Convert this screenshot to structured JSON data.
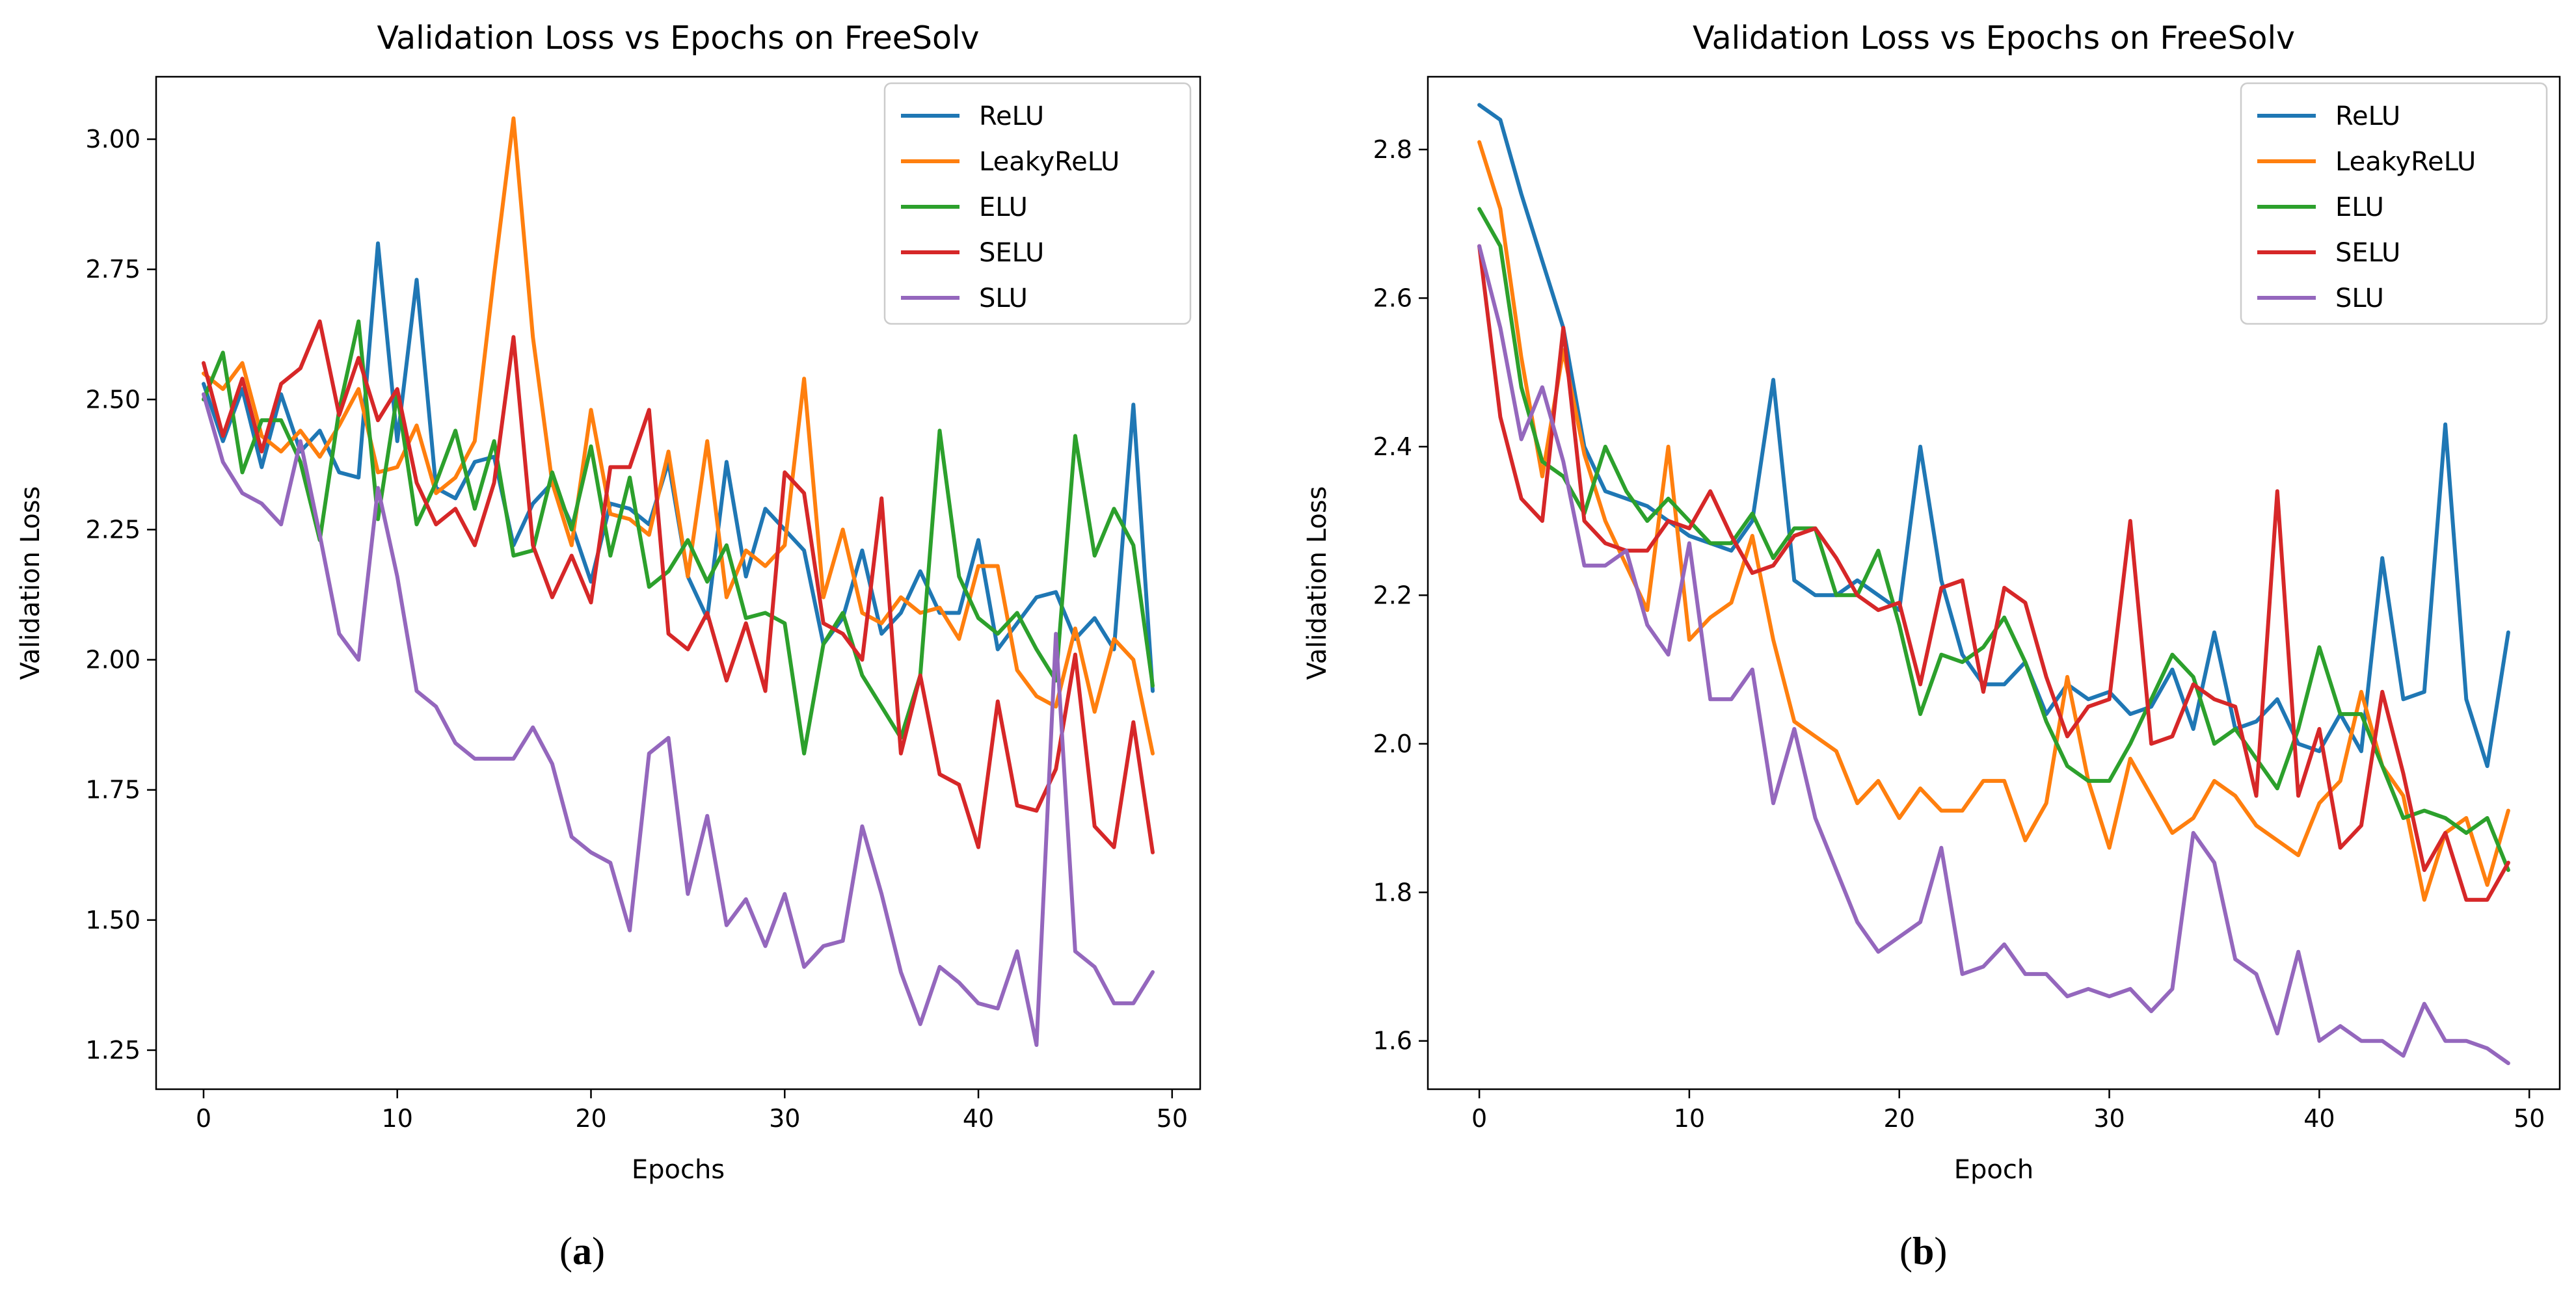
{
  "chart_data": [
    {
      "id": "a",
      "type": "line",
      "title": "Validation Loss vs Epochs on FreeSolv",
      "xlabel": "Epochs",
      "ylabel": "Validation Loss",
      "xlim": [
        -2.45,
        51.45
      ],
      "ylim": [
        1.175,
        3.12
      ],
      "xticks": [
        0,
        10,
        20,
        30,
        40,
        50
      ],
      "yticks": [
        1.25,
        1.5,
        1.75,
        2.0,
        2.25,
        2.5,
        2.75,
        3.0
      ],
      "ytick_labels": [
        "1.25",
        "1.50",
        "1.75",
        "2.00",
        "2.25",
        "2.50",
        "2.75",
        "3.00"
      ],
      "xtick_labels": [
        "0",
        "10",
        "20",
        "30",
        "40",
        "50"
      ],
      "legend_position": "top-right",
      "caption_prefix": "(",
      "caption_letter": "a",
      "caption_suffix": ")",
      "series": [
        {
          "name": "ReLU",
          "color": "#1f77b4",
          "values": [
            2.53,
            2.42,
            2.52,
            2.37,
            2.51,
            2.4,
            2.44,
            2.36,
            2.35,
            2.8,
            2.42,
            2.73,
            2.33,
            2.31,
            2.38,
            2.39,
            2.22,
            2.3,
            2.34,
            2.26,
            2.15,
            2.3,
            2.29,
            2.26,
            2.38,
            2.16,
            2.08,
            2.38,
            2.16,
            2.29,
            2.25,
            2.21,
            2.03,
            2.08,
            2.21,
            2.05,
            2.09,
            2.17,
            2.09,
            2.09,
            2.23,
            2.02,
            2.07,
            2.12,
            2.13,
            2.04,
            2.08,
            2.02,
            2.49,
            1.94
          ]
        },
        {
          "name": "LeakyReLU",
          "color": "#ff7f0e",
          "values": [
            2.55,
            2.52,
            2.57,
            2.43,
            2.4,
            2.44,
            2.39,
            2.45,
            2.52,
            2.36,
            2.37,
            2.45,
            2.32,
            2.35,
            2.42,
            2.74,
            3.04,
            2.62,
            2.34,
            2.22,
            2.48,
            2.28,
            2.27,
            2.24,
            2.4,
            2.16,
            2.42,
            2.12,
            2.21,
            2.18,
            2.22,
            2.54,
            2.12,
            2.25,
            2.09,
            2.07,
            2.12,
            2.09,
            2.1,
            2.04,
            2.18,
            2.18,
            1.98,
            1.93,
            1.91,
            2.06,
            1.9,
            2.04,
            2.0,
            1.82
          ]
        },
        {
          "name": "ELU",
          "color": "#2ca02c",
          "values": [
            2.5,
            2.59,
            2.36,
            2.46,
            2.46,
            2.38,
            2.23,
            2.48,
            2.65,
            2.27,
            2.51,
            2.26,
            2.34,
            2.44,
            2.29,
            2.42,
            2.2,
            2.21,
            2.36,
            2.25,
            2.41,
            2.2,
            2.35,
            2.14,
            2.17,
            2.23,
            2.15,
            2.22,
            2.08,
            2.09,
            2.07,
            1.82,
            2.03,
            2.09,
            1.97,
            1.91,
            1.85,
            1.97,
            2.44,
            2.16,
            2.08,
            2.05,
            2.09,
            2.02,
            1.96,
            2.43,
            2.2,
            2.29,
            2.22,
            1.95
          ]
        },
        {
          "name": "SELU",
          "color": "#d62728",
          "values": [
            2.57,
            2.43,
            2.54,
            2.4,
            2.53,
            2.56,
            2.65,
            2.47,
            2.58,
            2.46,
            2.52,
            2.34,
            2.26,
            2.29,
            2.22,
            2.34,
            2.62,
            2.22,
            2.12,
            2.2,
            2.11,
            2.37,
            2.37,
            2.48,
            2.05,
            2.02,
            2.09,
            1.96,
            2.07,
            1.94,
            2.36,
            2.32,
            2.07,
            2.05,
            2.0,
            2.31,
            1.82,
            1.97,
            1.78,
            1.76,
            1.64,
            1.92,
            1.72,
            1.71,
            1.79,
            2.01,
            1.68,
            1.64,
            1.88,
            1.63
          ]
        },
        {
          "name": "SLU",
          "color": "#9467bd",
          "values": [
            2.51,
            2.38,
            2.32,
            2.3,
            2.26,
            2.42,
            2.24,
            2.05,
            2.0,
            2.33,
            2.16,
            1.94,
            1.91,
            1.84,
            1.81,
            1.81,
            1.81,
            1.87,
            1.8,
            1.66,
            1.63,
            1.61,
            1.48,
            1.82,
            1.85,
            1.55,
            1.7,
            1.49,
            1.54,
            1.45,
            1.55,
            1.41,
            1.45,
            1.46,
            1.68,
            1.55,
            1.4,
            1.3,
            1.41,
            1.38,
            1.34,
            1.33,
            1.44,
            1.26,
            2.05,
            1.44,
            1.41,
            1.34,
            1.34,
            1.4
          ]
        }
      ]
    },
    {
      "id": "b",
      "type": "line",
      "title": "Validation Loss vs Epochs on FreeSolv",
      "xlabel": "Epoch",
      "ylabel": "Validation Loss",
      "xlim": [
        -2.45,
        51.45
      ],
      "ylim": [
        1.535,
        2.898
      ],
      "xticks": [
        0,
        10,
        20,
        30,
        40,
        50
      ],
      "yticks": [
        1.6,
        1.8,
        2.0,
        2.2,
        2.4,
        2.6,
        2.8
      ],
      "ytick_labels": [
        "1.6",
        "1.8",
        "2.0",
        "2.2",
        "2.4",
        "2.6",
        "2.8"
      ],
      "xtick_labels": [
        "0",
        "10",
        "20",
        "30",
        "40",
        "50"
      ],
      "legend_position": "top-right",
      "caption_prefix": "(",
      "caption_letter": "b",
      "caption_suffix": ")",
      "series": [
        {
          "name": "ReLU",
          "color": "#1f77b4",
          "values": [
            2.86,
            2.84,
            2.74,
            2.65,
            2.56,
            2.4,
            2.34,
            2.33,
            2.32,
            2.3,
            2.28,
            2.27,
            2.26,
            2.3,
            2.49,
            2.22,
            2.2,
            2.2,
            2.22,
            2.2,
            2.18,
            2.4,
            2.22,
            2.12,
            2.08,
            2.08,
            2.11,
            2.04,
            2.08,
            2.06,
            2.07,
            2.04,
            2.05,
            2.1,
            2.02,
            2.15,
            2.02,
            2.03,
            2.06,
            2.0,
            1.99,
            2.04,
            1.99,
            2.25,
            2.06,
            2.07,
            2.43,
            2.06,
            1.97,
            2.15
          ]
        },
        {
          "name": "LeakyReLU",
          "color": "#ff7f0e",
          "values": [
            2.81,
            2.72,
            2.52,
            2.36,
            2.53,
            2.39,
            2.3,
            2.24,
            2.18,
            2.4,
            2.14,
            2.17,
            2.19,
            2.28,
            2.14,
            2.03,
            2.01,
            1.99,
            1.92,
            1.95,
            1.9,
            1.94,
            1.91,
            1.91,
            1.95,
            1.95,
            1.87,
            1.92,
            2.09,
            1.95,
            1.86,
            1.98,
            1.93,
            1.88,
            1.9,
            1.95,
            1.93,
            1.89,
            1.87,
            1.85,
            1.92,
            1.95,
            2.07,
            1.97,
            1.93,
            1.79,
            1.88,
            1.9,
            1.81,
            1.91
          ]
        },
        {
          "name": "ELU",
          "color": "#2ca02c",
          "values": [
            2.72,
            2.67,
            2.48,
            2.38,
            2.36,
            2.31,
            2.4,
            2.34,
            2.3,
            2.33,
            2.3,
            2.27,
            2.27,
            2.31,
            2.25,
            2.29,
            2.29,
            2.2,
            2.2,
            2.26,
            2.16,
            2.04,
            2.12,
            2.11,
            2.13,
            2.17,
            2.11,
            2.03,
            1.97,
            1.95,
            1.95,
            2.0,
            2.06,
            2.12,
            2.09,
            2.0,
            2.02,
            1.98,
            1.94,
            2.02,
            2.13,
            2.04,
            2.04,
            1.97,
            1.9,
            1.91,
            1.9,
            1.88,
            1.9,
            1.83
          ]
        },
        {
          "name": "SELU",
          "color": "#d62728",
          "values": [
            2.67,
            2.44,
            2.33,
            2.3,
            2.56,
            2.3,
            2.27,
            2.26,
            2.26,
            2.3,
            2.29,
            2.34,
            2.28,
            2.23,
            2.24,
            2.28,
            2.29,
            2.25,
            2.2,
            2.18,
            2.19,
            2.08,
            2.21,
            2.22,
            2.07,
            2.21,
            2.19,
            2.09,
            2.01,
            2.05,
            2.06,
            2.3,
            2.0,
            2.01,
            2.08,
            2.06,
            2.05,
            1.93,
            2.34,
            1.93,
            2.02,
            1.86,
            1.89,
            2.07,
            1.96,
            1.83,
            1.88,
            1.79,
            1.79,
            1.84
          ]
        },
        {
          "name": "SLU",
          "color": "#9467bd",
          "values": [
            2.67,
            2.56,
            2.41,
            2.48,
            2.38,
            2.24,
            2.24,
            2.26,
            2.16,
            2.12,
            2.27,
            2.06,
            2.06,
            2.1,
            1.92,
            2.02,
            1.9,
            1.83,
            1.76,
            1.72,
            1.74,
            1.76,
            1.86,
            1.69,
            1.7,
            1.73,
            1.69,
            1.69,
            1.66,
            1.67,
            1.66,
            1.67,
            1.64,
            1.67,
            1.88,
            1.84,
            1.71,
            1.69,
            1.61,
            1.72,
            1.6,
            1.62,
            1.6,
            1.6,
            1.58,
            1.65,
            1.6,
            1.6,
            1.59,
            1.57
          ]
        }
      ]
    }
  ]
}
